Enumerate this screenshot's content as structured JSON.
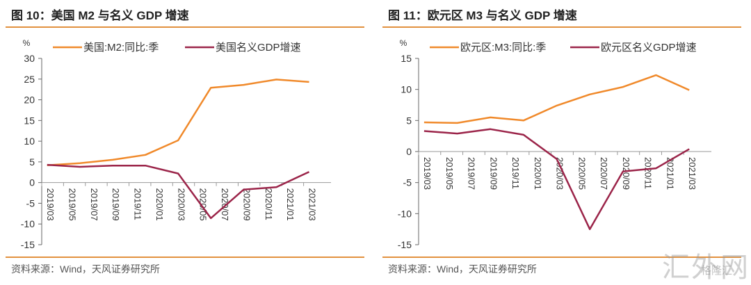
{
  "chart_data": [
    {
      "type": "line",
      "title": "图 10：美国 M2 与名义 GDP 增速",
      "ylabel": "%",
      "xlabel": "",
      "ylim": [
        -15,
        30
      ],
      "yticks": [
        30,
        25,
        20,
        15,
        10,
        5,
        0,
        -5,
        -10,
        -15
      ],
      "xtick_labels": [
        "2019/03",
        "2019/05",
        "2019/07",
        "2019/09",
        "2019/11",
        "2020/01",
        "2020/03",
        "2020/05",
        "2020/07",
        "2020/09",
        "2020/11",
        "2021/01",
        "2021/03"
      ],
      "x": [
        "2019/03",
        "2019/06",
        "2019/09",
        "2019/12",
        "2020/03",
        "2020/06",
        "2020/09",
        "2020/12",
        "2021/03"
      ],
      "legend_position": "top",
      "grid": false,
      "series": [
        {
          "name": "美国:M2:同比:季",
          "color": "#f0892a",
          "values": [
            4.2,
            4.7,
            5.5,
            6.7,
            10.2,
            22.9,
            23.6,
            24.9,
            24.3
          ]
        },
        {
          "name": "美国名义GDP增速",
          "color": "#9b2449",
          "values": [
            4.3,
            3.8,
            4.1,
            4.1,
            2.2,
            -8.6,
            -1.7,
            -1.1,
            2.6
          ]
        }
      ],
      "source": "资料来源：Wind，天风证券研究所"
    },
    {
      "type": "line",
      "title": "图 11：欧元区 M3 与名义 GDP 增速",
      "ylabel": "%",
      "xlabel": "",
      "ylim": [
        -15,
        15
      ],
      "yticks": [
        15,
        10,
        5,
        0,
        -5,
        -10,
        -15
      ],
      "xtick_labels": [
        "2019/03",
        "2019/05",
        "2019/07",
        "2019/09",
        "2019/11",
        "2020/01",
        "2020/03",
        "2020/05",
        "2020/07",
        "2020/09",
        "2020/11",
        "2021/01",
        "2021/03"
      ],
      "x": [
        "2019/03",
        "2019/06",
        "2019/09",
        "2019/12",
        "2020/03",
        "2020/06",
        "2020/09",
        "2020/12",
        "2021/03"
      ],
      "legend_position": "top",
      "grid": false,
      "series": [
        {
          "name": "欧元区:M3:同比:季",
          "color": "#f0892a",
          "values": [
            4.7,
            4.6,
            5.5,
            5.0,
            7.4,
            9.2,
            10.4,
            12.3,
            9.9
          ]
        },
        {
          "name": "欧元区名义GDP增速",
          "color": "#9b2449",
          "values": [
            3.3,
            2.9,
            3.6,
            2.7,
            -1.2,
            -12.5,
            -3.2,
            -2.7,
            0.4
          ]
        }
      ],
      "source": "资料来源：Wind，天风证券研究所"
    }
  ],
  "watermark": {
    "main": "汇外网",
    "sub": "格隆汇"
  }
}
